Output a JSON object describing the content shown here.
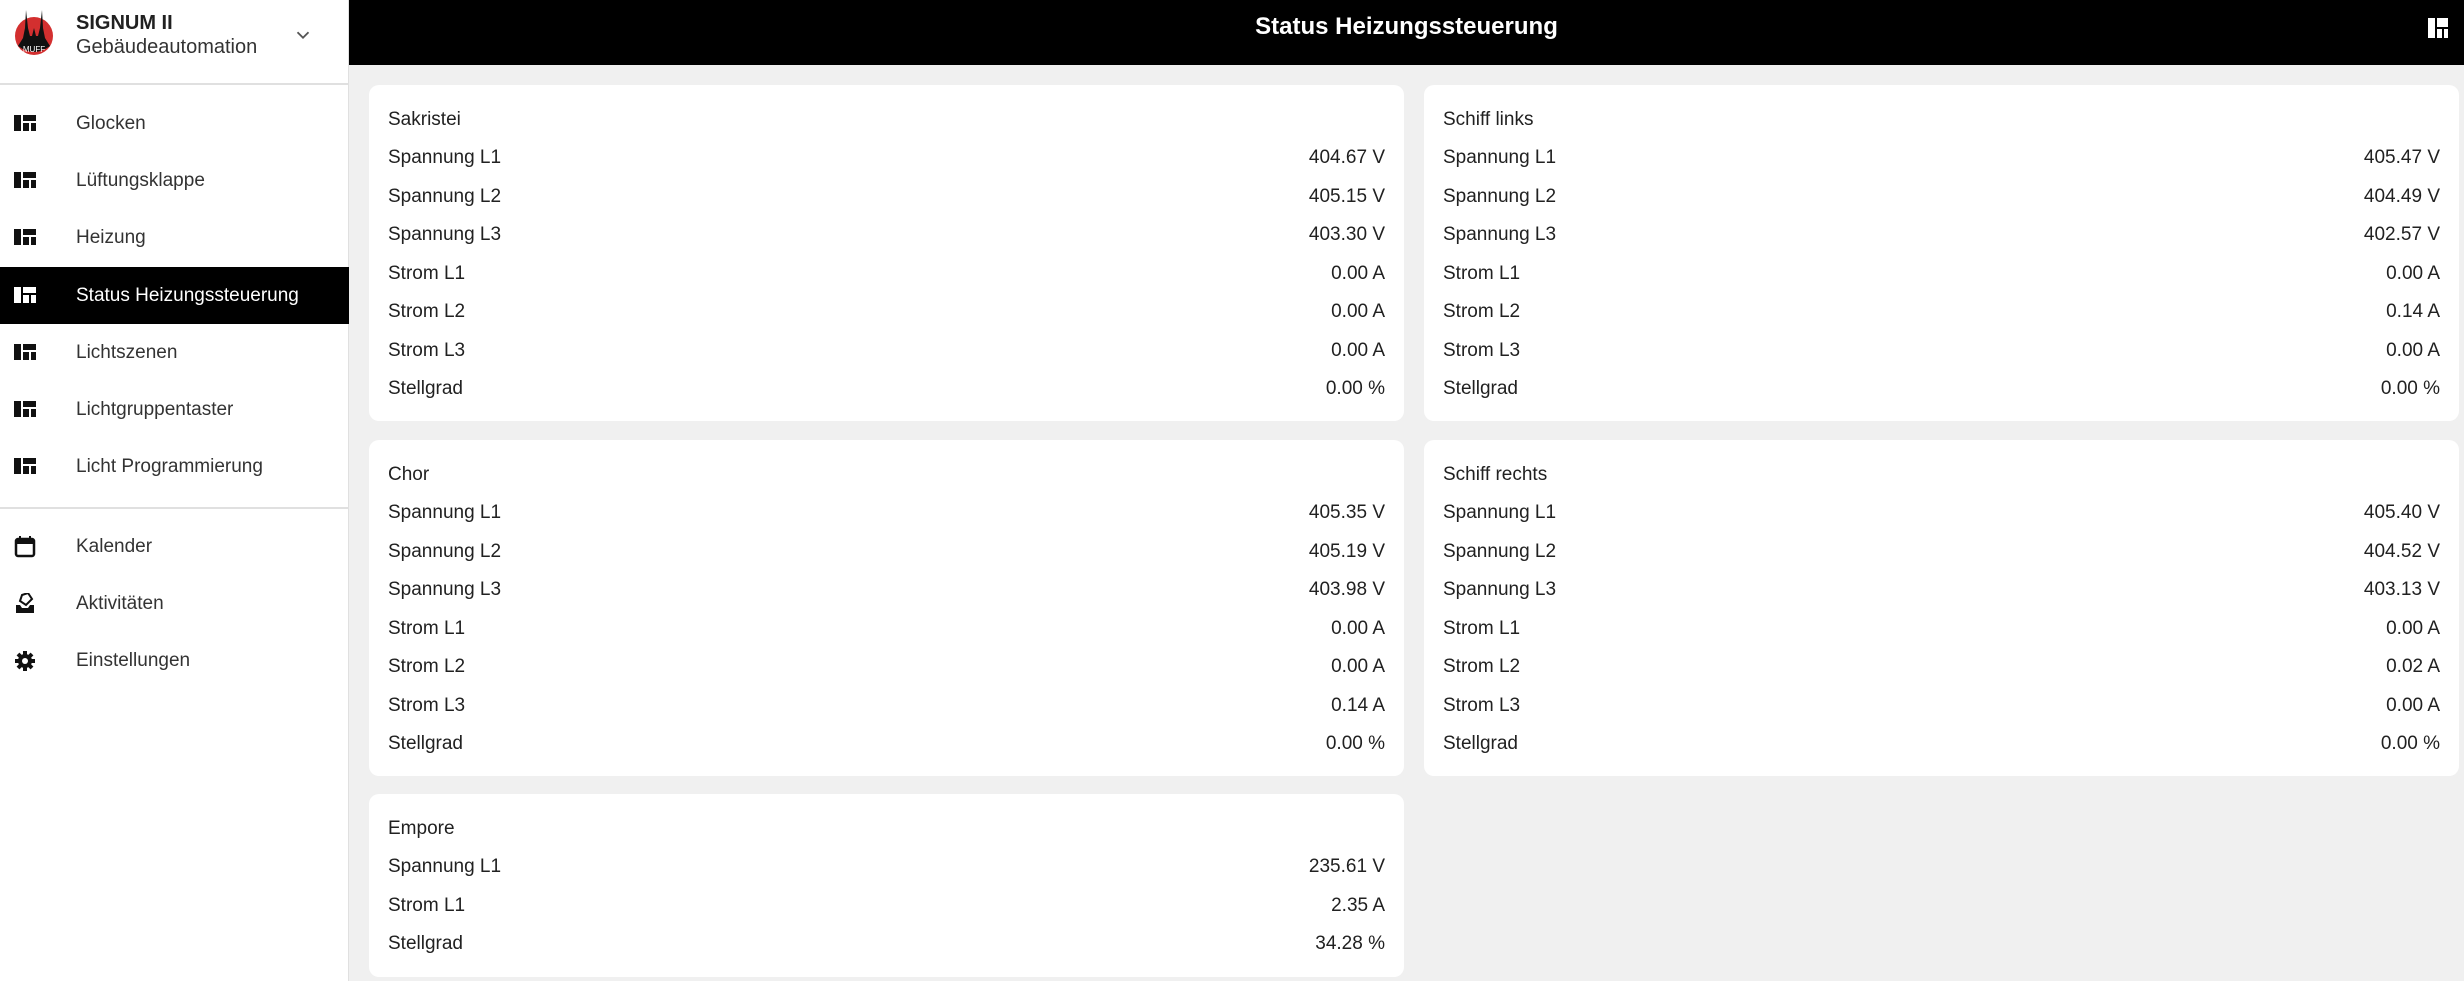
{
  "app": {
    "title": "SIGNUM II",
    "subtitle": "Gebäudeautomation",
    "logo_text": "MUFF"
  },
  "header": {
    "title": "Status Heizungssteuerung",
    "icon": "dashboard-icon"
  },
  "sidebar": {
    "items": [
      {
        "label": "Glocken",
        "icon": "dashboard-icon"
      },
      {
        "label": "Lüftungsklappe",
        "icon": "dashboard-icon"
      },
      {
        "label": "Heizung",
        "icon": "dashboard-icon"
      },
      {
        "label": "Status Heizungssteuerung",
        "icon": "dashboard-icon",
        "active": true
      },
      {
        "label": "Lichtszenen",
        "icon": "dashboard-icon"
      },
      {
        "label": "Lichtgruppentaster",
        "icon": "dashboard-icon"
      },
      {
        "label": "Licht Programmierung",
        "icon": "dashboard-icon"
      },
      {
        "label": "Kalender",
        "icon": "calendar-icon"
      },
      {
        "label": "Aktivitäten",
        "icon": "logbook-icon"
      },
      {
        "label": "Einstellungen",
        "icon": "gear-icon"
      }
    ]
  },
  "cards": [
    {
      "title": "Sakristei",
      "rows": [
        [
          "Spannung L1",
          "404.67 V"
        ],
        [
          "Spannung L2",
          "405.15 V"
        ],
        [
          "Spannung L3",
          "403.30 V"
        ],
        [
          "Strom L1",
          "0.00 A"
        ],
        [
          "Strom L2",
          "0.00 A"
        ],
        [
          "Strom L3",
          "0.00 A"
        ],
        [
          "Stellgrad",
          "0.00 %"
        ]
      ]
    },
    {
      "title": "Schiff links",
      "rows": [
        [
          "Spannung L1",
          "405.47 V"
        ],
        [
          "Spannung L2",
          "404.49 V"
        ],
        [
          "Spannung L3",
          "402.57 V"
        ],
        [
          "Strom L1",
          "0.00 A"
        ],
        [
          "Strom L2",
          "0.14 A"
        ],
        [
          "Strom L3",
          "0.00 A"
        ],
        [
          "Stellgrad",
          "0.00 %"
        ]
      ]
    },
    {
      "title": "Chor",
      "rows": [
        [
          "Spannung L1",
          "405.35 V"
        ],
        [
          "Spannung L2",
          "405.19 V"
        ],
        [
          "Spannung L3",
          "403.98 V"
        ],
        [
          "Strom L1",
          "0.00 A"
        ],
        [
          "Strom L2",
          "0.00 A"
        ],
        [
          "Strom L3",
          "0.14 A"
        ],
        [
          "Stellgrad",
          "0.00 %"
        ]
      ]
    },
    {
      "title": "Schiff rechts",
      "rows": [
        [
          "Spannung L1",
          "405.40 V"
        ],
        [
          "Spannung L2",
          "404.52 V"
        ],
        [
          "Spannung L3",
          "403.13 V"
        ],
        [
          "Strom L1",
          "0.00 A"
        ],
        [
          "Strom L2",
          "0.02 A"
        ],
        [
          "Strom L3",
          "0.00 A"
        ],
        [
          "Stellgrad",
          "0.00 %"
        ]
      ]
    },
    {
      "title": "Empore",
      "rows": [
        [
          "Spannung L1",
          "235.61 V"
        ],
        [
          "Strom L1",
          "2.35 A"
        ],
        [
          "Stellgrad",
          "34.28 %"
        ]
      ]
    }
  ]
}
